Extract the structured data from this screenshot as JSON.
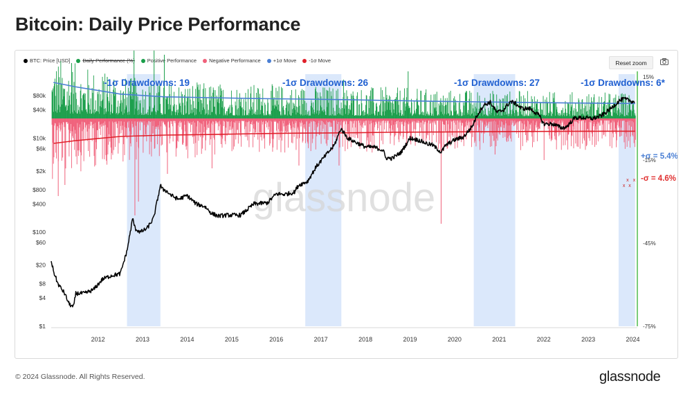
{
  "page": {
    "title": "Bitcoin: Daily Price Performance",
    "copyright": "© 2024 Glassnode. All Rights Reserved.",
    "brand": "glassnode",
    "watermark": "glassnode"
  },
  "toolbar": {
    "reset_zoom_label": "Reset zoom",
    "camera_icon": "camera-icon"
  },
  "legend": [
    {
      "label": "BTC: Price [USD]",
      "color": "#000000",
      "enabled": true
    },
    {
      "label": "Daily Performance (%)",
      "color": "#1a9e4a",
      "enabled": false
    },
    {
      "label": "Positive Performance",
      "color": "#1a9e4a",
      "enabled": true
    },
    {
      "label": "Negative Performance",
      "color": "#f0607a",
      "enabled": true
    },
    {
      "label": "+1σ Move",
      "color": "#4a7fd4",
      "enabled": true
    },
    {
      "label": "-1σ Move",
      "color": "#e0202a",
      "enabled": true
    }
  ],
  "chart_data": {
    "type": "line",
    "colors": {
      "price": "#000000",
      "positive": "#1a9e4a",
      "negative": "#f0607a",
      "plus_sigma": "#4a7fd4",
      "minus_sigma": "#e0202a",
      "shade": "#dbe8fb",
      "label_blue": "#1f5fd1",
      "label_red": "#e03030",
      "cross": "#cc2222",
      "now_line": "#22aa22"
    },
    "x_ticks": [
      "2012",
      "2013",
      "2014",
      "2015",
      "2016",
      "2017",
      "2018",
      "2019",
      "2020",
      "2021",
      "2022",
      "2023",
      "2024"
    ],
    "y_left_ticks": [
      "$80k",
      "$40k",
      "$10k",
      "$6k",
      "$2k",
      "$800",
      "$400",
      "$100",
      "$60",
      "$20",
      "$8",
      "$4",
      "$1"
    ],
    "y_left_scale": "log",
    "y_left_range": [
      1,
      200000
    ],
    "y_right_ticks": [
      "15%",
      "-15%",
      "-45%",
      "-75%"
    ],
    "y_right_range": [
      -75,
      15
    ],
    "x_range": [
      2011.45,
      2024.6
    ],
    "shaded_periods": [
      {
        "start": 2013.15,
        "end": 2013.9,
        "label": "-1σ Drawdowns: 19"
      },
      {
        "start": 2017.15,
        "end": 2017.96,
        "label": "-1σ Drawdowns: 26"
      },
      {
        "start": 2020.93,
        "end": 2021.86,
        "label": "-1σ Drawdowns: 27"
      },
      {
        "start": 2024.18,
        "end": 2024.55,
        "label": "-1σ Drawdowns: 6*"
      }
    ],
    "sigma_labels": {
      "plus": "+σ = 5.4%",
      "minus": "-σ = 4.6%"
    },
    "plus_sigma": {
      "x": [
        2011.5,
        2012,
        2013,
        2014,
        2015,
        2016,
        2017,
        2018,
        2019,
        2020,
        2021,
        2022,
        2023,
        2024,
        2024.55
      ],
      "pct": [
        13.0,
        11.4,
        8.8,
        7.8,
        7.5,
        7.2,
        7.0,
        6.8,
        6.5,
        6.2,
        6.0,
        5.8,
        5.6,
        5.45,
        5.4
      ]
    },
    "minus_sigma": {
      "x": [
        2011.5,
        2012,
        2013,
        2014,
        2015,
        2016,
        2017,
        2018,
        2019,
        2020,
        2021,
        2022,
        2023,
        2024,
        2024.55
      ],
      "pct": [
        -9.0,
        -8.0,
        -6.5,
        -6.0,
        -5.8,
        -5.5,
        -5.3,
        -5.2,
        -5.0,
        -4.9,
        -4.8,
        -4.7,
        -4.65,
        -4.6,
        -4.6
      ]
    },
    "price": {
      "x": [
        2011.45,
        2011.5,
        2011.6,
        2011.75,
        2011.85,
        2011.95,
        2012.0,
        2012.2,
        2012.4,
        2012.6,
        2012.8,
        2013.0,
        2013.15,
        2013.28,
        2013.33,
        2013.45,
        2013.6,
        2013.75,
        2013.9,
        2013.95,
        2014.0,
        2014.15,
        2014.3,
        2014.5,
        2014.7,
        2014.9,
        2015.05,
        2015.2,
        2015.4,
        2015.7,
        2016.0,
        2016.3,
        2016.5,
        2016.7,
        2016.9,
        2017.0,
        2017.2,
        2017.4,
        2017.6,
        2017.8,
        2017.95,
        2018.1,
        2018.3,
        2018.5,
        2018.7,
        2018.9,
        2018.95,
        2019.1,
        2019.3,
        2019.5,
        2019.7,
        2019.9,
        2020.0,
        2020.2,
        2020.3,
        2020.5,
        2020.7,
        2020.9,
        2021.0,
        2021.15,
        2021.3,
        2021.45,
        2021.6,
        2021.75,
        2021.86,
        2022.0,
        2022.2,
        2022.4,
        2022.5,
        2022.7,
        2022.9,
        2023.0,
        2023.2,
        2023.4,
        2023.6,
        2023.8,
        2024.0,
        2024.2,
        2024.3,
        2024.45,
        2024.55
      ],
      "y": [
        25,
        15,
        8,
        5,
        3,
        2.5,
        5,
        5,
        6,
        10,
        12,
        13,
        40,
        200,
        120,
        100,
        120,
        200,
        1000,
        800,
        800,
        600,
        500,
        600,
        400,
        350,
        250,
        220,
        230,
        230,
        400,
        420,
        650,
        640,
        700,
        1000,
        1200,
        2500,
        4200,
        7000,
        16000,
        10000,
        8000,
        6500,
        6400,
        5500,
        3800,
        3700,
        5000,
        10000,
        9000,
        7500,
        7200,
        5000,
        7000,
        9200,
        10500,
        18000,
        30000,
        50000,
        58000,
        35000,
        40000,
        60000,
        55000,
        43000,
        42000,
        30000,
        20000,
        20000,
        16500,
        17000,
        27000,
        27000,
        26000,
        30000,
        42000,
        63000,
        68000,
        62000,
        58000
      ]
    },
    "downside_markers": [
      2024.3,
      2024.38,
      2024.43,
      2024.53
    ]
  }
}
